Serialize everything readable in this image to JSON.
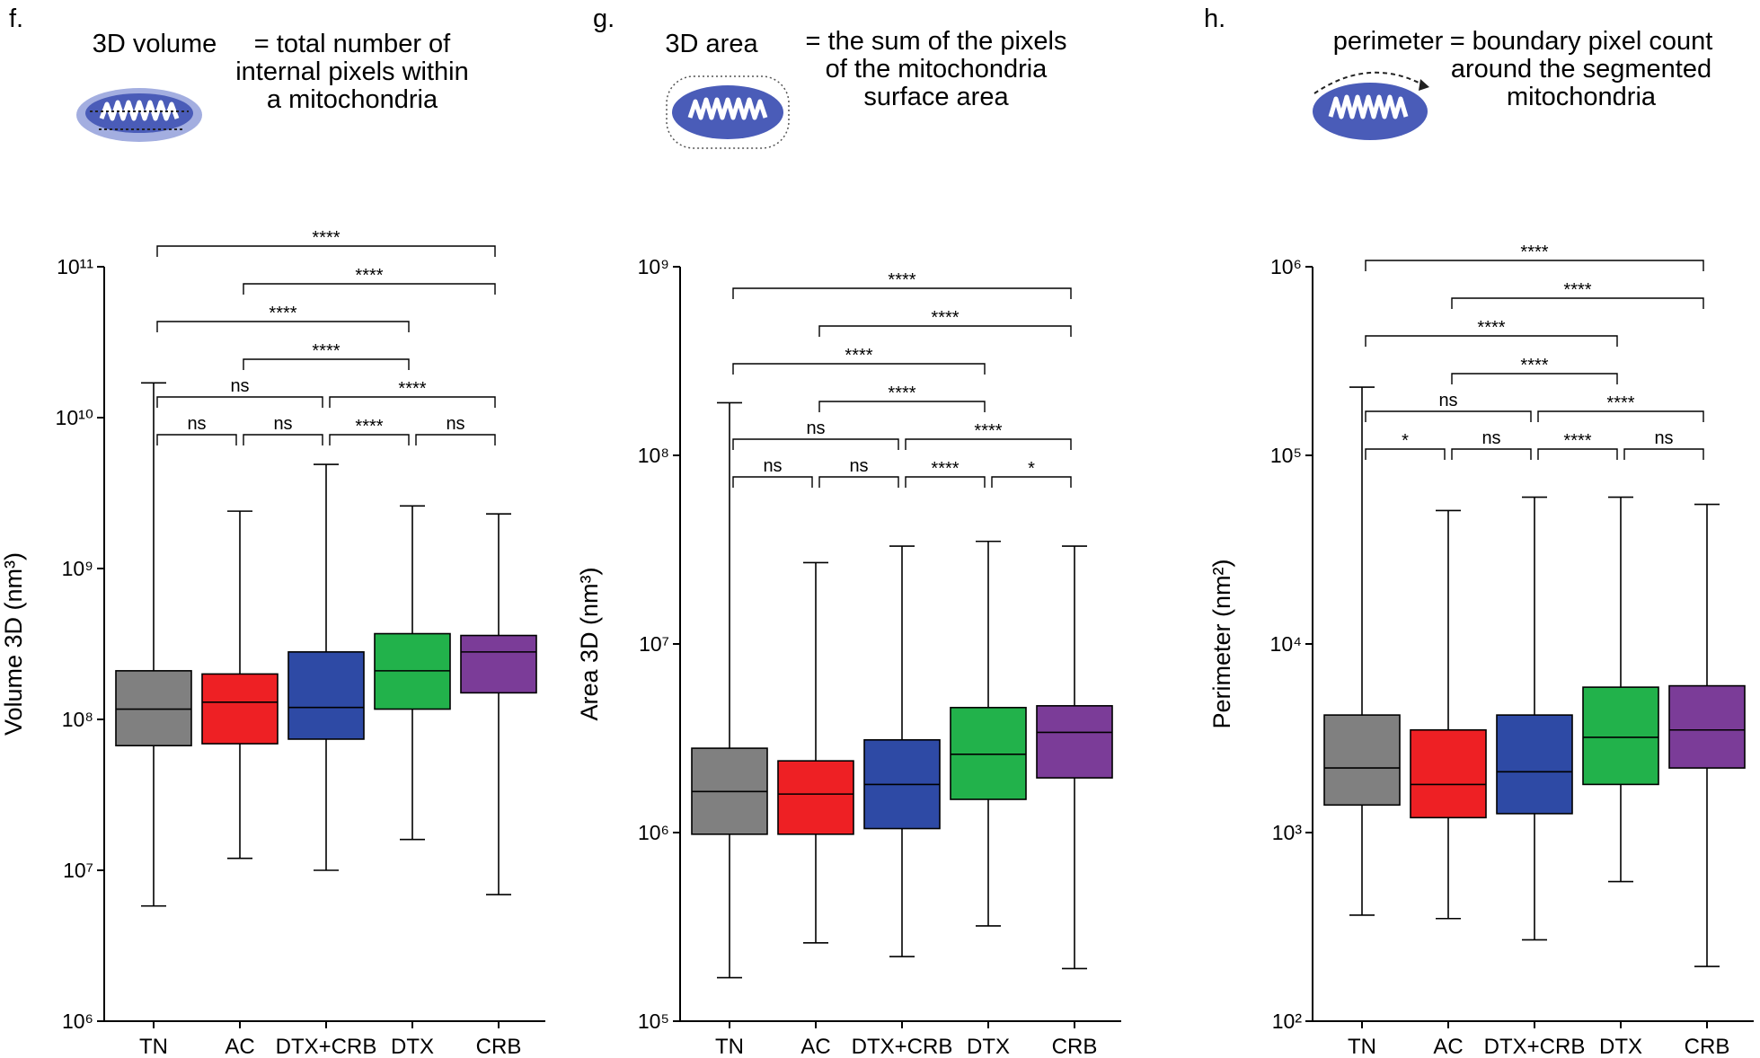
{
  "chart_data": [
    {
      "type": "box",
      "panel_label": "f.",
      "term": "3D volume",
      "definition": [
        "= total number of",
        "internal pixels within",
        "a mitochondria"
      ],
      "y_label": "Volume 3D (nm³)",
      "log_y": true,
      "categories": [
        "TN",
        "AC",
        "DTX+CRB",
        "DTX",
        "CRB"
      ],
      "colors": [
        "#808080",
        "#ee2024",
        "#2e4aa5",
        "#22b24b",
        "#7b3c98"
      ],
      "min": [
        5800000.0,
        12000000.0,
        10000000.0,
        16000000.0,
        6900000.0
      ],
      "q1": [
        67000000.0,
        69000000.0,
        74000000.0,
        117000000.0,
        150000000.0
      ],
      "median": [
        117000000.0,
        130000000.0,
        120000000.0,
        210000000.0,
        280000000.0
      ],
      "q3": [
        210000000.0,
        200000000.0,
        280000000.0,
        370000000.0,
        360000000.0
      ],
      "max": [
        17000000000.0,
        2400000000.0,
        4900000000.0,
        2600000000.0,
        2300000000.0
      ],
      "ylim": [
        1000000.0,
        100000000000.0
      ],
      "yticks": [
        {
          "value": 1000000.0,
          "label": "10⁶"
        },
        {
          "value": 10000000.0,
          "label": "10⁷"
        },
        {
          "value": 100000000.0,
          "label": "10⁸"
        },
        {
          "value": 1000000000.0,
          "label": "10⁹"
        },
        {
          "value": 10000000000.0,
          "label": "10¹⁰"
        },
        {
          "value": 100000000000.0,
          "label": "10¹¹"
        }
      ],
      "comparisons": [
        {
          "from": "TN",
          "to": "CRB",
          "label": "****"
        },
        {
          "from": "AC",
          "to": "CRB",
          "label": "****"
        },
        {
          "from": "TN",
          "to": "DTX",
          "label": "****"
        },
        {
          "from": "AC",
          "to": "DTX",
          "label": "****"
        },
        {
          "from": "TN",
          "to": "DTX+CRB",
          "label": "ns"
        },
        {
          "from": "DTX+CRB",
          "to": "CRB",
          "label": "****"
        },
        {
          "from": "TN",
          "to": "AC",
          "label": "ns"
        },
        {
          "from": "AC",
          "to": "DTX+CRB",
          "label": "ns"
        },
        {
          "from": "DTX+CRB",
          "to": "DTX",
          "label": "****"
        },
        {
          "from": "DTX",
          "to": "CRB",
          "label": "ns"
        }
      ]
    },
    {
      "type": "box",
      "panel_label": "g.",
      "term": "3D area",
      "definition": [
        "= the sum of the pixels",
        "of the mitochondria",
        "surface area"
      ],
      "y_label": "Area 3D (nm³)",
      "log_y": true,
      "categories": [
        "TN",
        "AC",
        "DTX+CRB",
        "DTX",
        "CRB"
      ],
      "colors": [
        "#808080",
        "#ee2024",
        "#2e4aa5",
        "#22b24b",
        "#7b3c98"
      ],
      "min": [
        170000.0,
        260000.0,
        220000.0,
        320000.0,
        190000.0
      ],
      "q1": [
        980000.0,
        980000.0,
        1050000.0,
        1500000.0,
        1950000.0
      ],
      "median": [
        1650000.0,
        1600000.0,
        1800000.0,
        2600000.0,
        3400000.0
      ],
      "q3": [
        2800000.0,
        2400000.0,
        3100000.0,
        4600000.0,
        4700000.0
      ],
      "max": [
        190000000.0,
        27000000.0,
        33000000.0,
        35000000.0,
        33000000.0
      ],
      "ylim": [
        100000.0,
        1000000000.0
      ],
      "yticks": [
        {
          "value": 100000.0,
          "label": "10⁵"
        },
        {
          "value": 1000000.0,
          "label": "10⁶"
        },
        {
          "value": 10000000.0,
          "label": "10⁷"
        },
        {
          "value": 100000000.0,
          "label": "10⁸"
        },
        {
          "value": 1000000000.0,
          "label": "10⁹"
        }
      ],
      "comparisons": [
        {
          "from": "TN",
          "to": "CRB",
          "label": "****"
        },
        {
          "from": "AC",
          "to": "CRB",
          "label": "****"
        },
        {
          "from": "TN",
          "to": "DTX",
          "label": "****"
        },
        {
          "from": "AC",
          "to": "DTX",
          "label": "****"
        },
        {
          "from": "TN",
          "to": "DTX+CRB",
          "label": "ns"
        },
        {
          "from": "DTX+CRB",
          "to": "CRB",
          "label": "****"
        },
        {
          "from": "TN",
          "to": "AC",
          "label": "ns"
        },
        {
          "from": "AC",
          "to": "DTX+CRB",
          "label": "ns"
        },
        {
          "from": "DTX+CRB",
          "to": "DTX",
          "label": "****"
        },
        {
          "from": "DTX",
          "to": "CRB",
          "label": "*"
        }
      ]
    },
    {
      "type": "box",
      "panel_label": "h.",
      "term": "perimeter",
      "definition": [
        "= boundary pixel count",
        "around the segmented",
        "mitochondria"
      ],
      "y_label": "Perimeter (nm²)",
      "log_y": true,
      "categories": [
        "TN",
        "AC",
        "DTX+CRB",
        "DTX",
        "CRB"
      ],
      "colors": [
        "#808080",
        "#ee2024",
        "#2e4aa5",
        "#22b24b",
        "#7b3c98"
      ],
      "min": [
        365,
        350,
        270,
        550,
        195
      ],
      "q1": [
        1400,
        1200,
        1260,
        1800,
        2200
      ],
      "median": [
        2200,
        1800,
        2100,
        3200,
        3500
      ],
      "q3": [
        4200,
        3500,
        4200,
        5900,
        6000
      ],
      "max": [
        230000.0,
        51000.0,
        60000.0,
        60000.0,
        55000.0
      ],
      "ylim": [
        100,
        1000000.0
      ],
      "yticks": [
        {
          "value": 100,
          "label": "10²"
        },
        {
          "value": 1000,
          "label": "10³"
        },
        {
          "value": 10000,
          "label": "10⁴"
        },
        {
          "value": 100000,
          "label": "10⁵"
        },
        {
          "value": 1000000,
          "label": "10⁶"
        }
      ],
      "comparisons": [
        {
          "from": "TN",
          "to": "CRB",
          "label": "****"
        },
        {
          "from": "AC",
          "to": "CRB",
          "label": "****"
        },
        {
          "from": "TN",
          "to": "DTX",
          "label": "****"
        },
        {
          "from": "AC",
          "to": "DTX",
          "label": "****"
        },
        {
          "from": "TN",
          "to": "DTX+CRB",
          "label": "ns"
        },
        {
          "from": "DTX+CRB",
          "to": "CRB",
          "label": "****"
        },
        {
          "from": "TN",
          "to": "AC",
          "label": "*"
        },
        {
          "from": "AC",
          "to": "DTX+CRB",
          "label": "ns"
        },
        {
          "from": "DTX+CRB",
          "to": "DTX",
          "label": "****"
        },
        {
          "from": "DTX",
          "to": "CRB",
          "label": "ns"
        }
      ]
    }
  ]
}
